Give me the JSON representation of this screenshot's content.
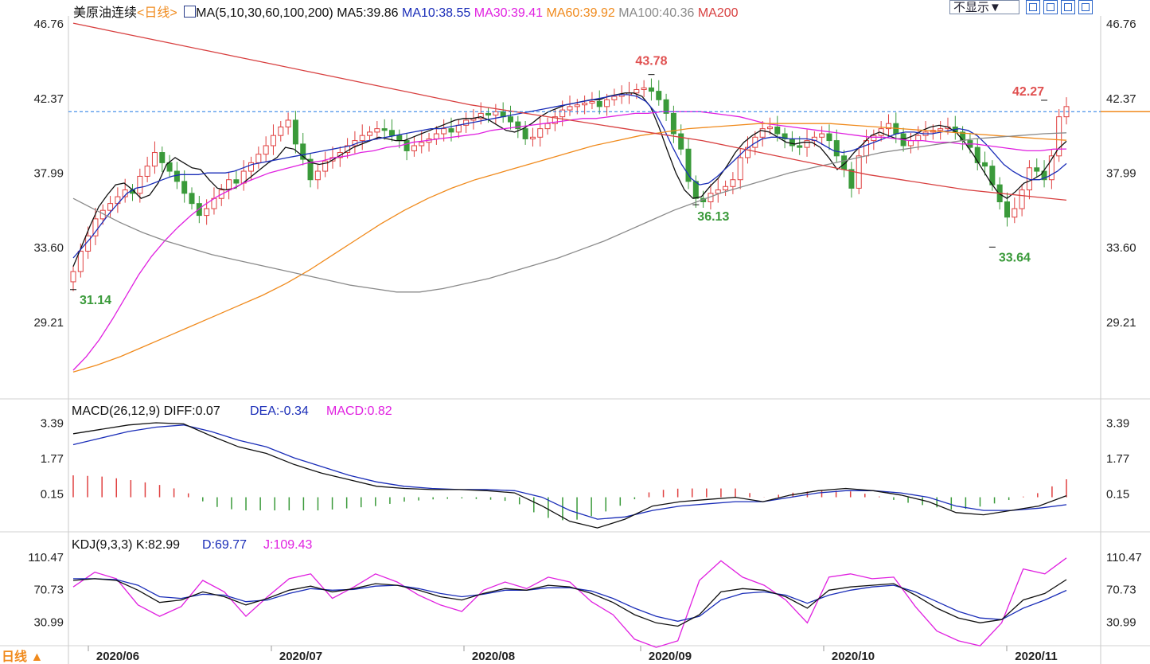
{
  "header": {
    "symbol": "美原油连续",
    "period": "<日线>",
    "ma_label": "MA(5,10,30,60,100,200)",
    "ma_values": [
      {
        "text": "MA5:39.86",
        "color": "#101010"
      },
      {
        "text": "MA10:38.55",
        "color": "#1a2db8"
      },
      {
        "text": "MA30:39.41",
        "color": "#e020e0"
      },
      {
        "text": "MA60:39.92",
        "color": "#f08a1c"
      },
      {
        "text": "MA100:40.36",
        "color": "#8a8a8a"
      },
      {
        "text": "MA200",
        "color": "#d84040"
      }
    ],
    "display_button": "不显示▼",
    "tool_icons": [
      "crosshair-icon",
      "layout-icon",
      "zoom-icon",
      "next-icon"
    ]
  },
  "price_panel": {
    "ticks": [
      "46.76",
      "42.37",
      "37.99",
      "33.60",
      "29.21"
    ],
    "annotations": [
      {
        "text": "43.78",
        "color": "#e05050"
      },
      {
        "text": "42.27",
        "color": "#e05050"
      },
      {
        "text": "36.13",
        "color": "#3a9a3a"
      },
      {
        "text": "33.64",
        "color": "#3a9a3a"
      },
      {
        "text": "31.14",
        "color": "#3a9a3a"
      }
    ]
  },
  "macd_panel": {
    "title": "MACD(26,12,9)",
    "diff": "DIFF:0.07",
    "dea": "DEA:-0.34",
    "macd": "MACD:0.82",
    "ticks": [
      "3.39",
      "1.77",
      "0.15"
    ]
  },
  "kdj_panel": {
    "title": "KDJ(9,3,3)",
    "k": "K:82.99",
    "d": "D:69.77",
    "j": "J:109.43",
    "ticks": [
      "110.47",
      "70.73",
      "30.99"
    ]
  },
  "x_axis": {
    "labels": [
      "2020/06",
      "2020/07",
      "2020/08",
      "2020/09",
      "2020/10",
      "2020/11"
    ]
  },
  "footer": {
    "period_button": "日线 ▲"
  },
  "colors": {
    "up": "#e04040",
    "down": "#3a9a3a",
    "ma5": "#101010",
    "ma10": "#1a2db8",
    "ma30": "#e020e0",
    "ma60": "#f08a1c",
    "ma100": "#8a8a8a",
    "ma200": "#d84040",
    "ref_line": "#1e78e6"
  },
  "chart_data": {
    "type": "candlestick",
    "reference_line": 41.6,
    "candles_close": [
      32.2,
      33.4,
      34.3,
      35.3,
      35.8,
      36.2,
      36.6,
      37.0,
      36.8,
      37.8,
      38.4,
      39.2,
      38.6,
      38.1,
      37.5,
      36.8,
      36.2,
      35.5,
      35.9,
      36.5,
      37.0,
      37.6,
      37.4,
      38.1,
      38.6,
      39.1,
      39.6,
      40.2,
      40.7,
      41.1,
      39.7,
      38.8,
      37.6,
      38.1,
      38.7,
      38.9,
      39.2,
      39.6,
      39.9,
      40.2,
      40.4,
      40.6,
      40.5,
      40.2,
      39.9,
      39.3,
      39.6,
      39.8,
      40.0,
      40.3,
      40.6,
      40.4,
      40.8,
      41.1,
      41.2,
      41.5,
      41.4,
      41.6,
      41.3,
      41.0,
      40.6,
      40.0,
      40.1,
      40.6,
      40.9,
      41.3,
      41.7,
      41.9,
      42.0,
      42.1,
      42.2,
      41.9,
      42.3,
      42.5,
      42.6,
      42.7,
      42.9,
      43.0,
      42.8,
      42.3,
      41.5,
      40.3,
      39.4,
      37.5,
      36.5,
      36.3,
      36.8,
      37.0,
      37.2,
      37.6,
      38.9,
      39.5,
      40.1,
      40.6,
      40.7,
      40.3,
      40.0,
      39.6,
      39.5,
      39.9,
      40.1,
      40.3,
      39.9,
      39.0,
      38.2,
      37.1,
      39.0,
      39.9,
      40.2,
      40.6,
      40.9,
      40.3,
      39.6,
      39.9,
      40.2,
      40.4,
      40.5,
      40.6,
      40.7,
      40.4,
      39.9,
      39.5,
      38.6,
      38.4,
      37.3,
      36.3,
      35.4,
      35.9,
      37.0,
      38.3,
      38.1,
      37.6,
      39.0,
      41.3,
      41.9
    ],
    "ma_series": [
      {
        "name": "MA5",
        "values": [
          32.5,
          33.7,
          34.9,
          36.0,
          36.7,
          37.3,
          37.4,
          37.0,
          36.5,
          36.7,
          37.4,
          38.5,
          38.9,
          38.6,
          38.3,
          38.2,
          37.6,
          37.1,
          37.0,
          37.1,
          37.4,
          37.8,
          38.2,
          38.6,
          38.9,
          39.5,
          39.4,
          39.0,
          38.6,
          38.5,
          38.6,
          38.9,
          39.2,
          39.5,
          39.7,
          39.9,
          40.1,
          40.0,
          39.9,
          39.9,
          40.1,
          40.3,
          40.5,
          40.7,
          40.9,
          41.1,
          41.2,
          41.2,
          41.3,
          41.1,
          40.8,
          40.5,
          40.4,
          40.6,
          40.9,
          41.3,
          41.6,
          41.8,
          42.0,
          42.1,
          42.2,
          42.3,
          42.3,
          42.5,
          42.6,
          42.7,
          42.7,
          42.5,
          41.9,
          40.7,
          39.3,
          38.0,
          37.0,
          36.5,
          36.6,
          37.2,
          37.7,
          38.4,
          39.2,
          39.8,
          40.2,
          40.5,
          40.4,
          40.1,
          39.8,
          39.7,
          39.8,
          39.8,
          39.5,
          38.9,
          38.2,
          38.6,
          39.2,
          39.7,
          40.2,
          40.4,
          40.2,
          40.0,
          40.0,
          40.2,
          40.5,
          40.7,
          40.8,
          40.7,
          40.4,
          39.8,
          39.1,
          38.3,
          37.5,
          36.8,
          36.5,
          36.9,
          37.4,
          37.6,
          37.9,
          38.6,
          39.4,
          39.86
        ]
      },
      {
        "name": "MA10",
        "values": [
          33.0,
          33.6,
          34.2,
          34.9,
          35.6,
          36.2,
          36.8,
          37.1,
          37.2,
          37.4,
          37.6,
          37.8,
          37.9,
          37.9,
          37.9,
          38.0,
          38.0,
          38.0,
          38.1,
          38.3,
          38.5,
          38.6,
          38.7,
          38.8,
          38.9,
          39.0,
          39.1,
          39.2,
          39.3,
          39.4,
          39.5,
          39.6,
          39.8,
          39.9,
          40.0,
          40.1,
          40.2,
          40.3,
          40.4,
          40.5,
          40.6,
          40.6,
          40.7,
          40.8,
          40.9,
          41.0,
          41.1,
          41.2,
          41.3,
          41.4,
          41.5,
          41.6,
          41.7,
          41.8,
          41.9,
          42.0,
          42.1,
          42.2,
          42.3,
          42.4,
          42.5,
          42.6,
          42.6,
          42.5,
          42.2,
          41.6,
          40.6,
          39.5,
          38.5,
          37.7,
          37.3,
          37.4,
          37.8,
          38.3,
          38.8,
          39.3,
          39.7,
          40.0,
          40.1,
          40.1,
          40.0,
          40.0,
          40.0,
          39.9,
          39.6,
          39.3,
          39.2,
          39.3,
          39.5,
          39.7,
          39.9,
          40.1,
          40.3,
          40.4,
          40.4,
          40.3,
          40.3,
          40.4,
          40.5,
          40.6,
          40.5,
          40.2,
          39.7,
          39.1,
          38.5,
          38.1,
          37.8,
          37.6,
          37.6,
          37.8,
          38.1,
          38.55
        ]
      },
      {
        "name": "MA30",
        "values": [
          26.4,
          27.2,
          28.2,
          29.4,
          30.7,
          32.0,
          33.1,
          34.0,
          34.8,
          35.5,
          36.1,
          36.6,
          37.0,
          37.4,
          37.7,
          38.0,
          38.2,
          38.4,
          38.6,
          38.7,
          38.9,
          39.0,
          39.2,
          39.3,
          39.5,
          39.6,
          39.8,
          39.9,
          40.0,
          40.1,
          40.2,
          40.3,
          40.5,
          40.6,
          40.7,
          40.8,
          40.9,
          41.0,
          41.1,
          41.2,
          41.2,
          41.3,
          41.4,
          41.5,
          41.5,
          41.6,
          41.6,
          41.6,
          41.6,
          41.5,
          41.4,
          41.3,
          41.1,
          40.9,
          40.8,
          40.7,
          40.6,
          40.5,
          40.4,
          40.3,
          40.2,
          40.1,
          40.1,
          40.0,
          39.9,
          39.9,
          39.8,
          39.8,
          39.7,
          39.7,
          39.6,
          39.5,
          39.4,
          39.3,
          39.3,
          39.4,
          39.41
        ]
      },
      {
        "name": "MA60",
        "values": [
          26.3,
          26.7,
          27.2,
          27.8,
          28.4,
          29.0,
          29.6,
          30.2,
          30.8,
          31.5,
          32.3,
          33.2,
          34.1,
          35.0,
          35.8,
          36.5,
          37.1,
          37.6,
          38.0,
          38.4,
          38.8,
          39.2,
          39.6,
          39.9,
          40.2,
          40.4,
          40.6,
          40.7,
          40.8,
          40.9,
          40.9,
          40.9,
          40.9,
          40.8,
          40.7,
          40.6,
          40.5,
          40.4,
          40.3,
          40.2,
          40.1,
          40.0,
          39.92
        ]
      },
      {
        "name": "MA100",
        "values": [
          36.5,
          35.8,
          35.1,
          34.5,
          34.0,
          33.6,
          33.2,
          32.9,
          32.6,
          32.3,
          32.0,
          31.7,
          31.4,
          31.2,
          31.0,
          31.0,
          31.2,
          31.5,
          31.8,
          32.2,
          32.6,
          33.0,
          33.5,
          34.0,
          34.6,
          35.2,
          35.8,
          36.3,
          36.8,
          37.2,
          37.6,
          38.0,
          38.3,
          38.6,
          38.9,
          39.2,
          39.4,
          39.6,
          39.8,
          40.0,
          40.1,
          40.2,
          40.3,
          40.36
        ]
      },
      {
        "name": "MA200",
        "values": [
          46.8,
          46.4,
          46.0,
          45.6,
          45.2,
          44.8,
          44.4,
          44.0,
          43.6,
          43.2,
          42.8,
          42.4,
          42.0,
          41.7,
          41.4,
          41.1,
          40.8,
          40.5,
          40.2,
          39.9,
          39.5,
          39.1,
          38.7,
          38.3,
          37.9,
          37.6,
          37.3,
          37.0,
          36.8,
          36.6,
          36.4
        ]
      }
    ],
    "macd": {
      "diff": [
        2.9,
        3.1,
        3.3,
        3.4,
        3.35,
        2.8,
        2.3,
        2.0,
        1.5,
        1.1,
        0.8,
        0.5,
        0.4,
        0.35,
        0.35,
        0.3,
        0.2,
        -0.4,
        -1.1,
        -1.4,
        -1.0,
        -0.4,
        -0.2,
        -0.1,
        0.0,
        -0.2,
        0.1,
        0.3,
        0.4,
        0.3,
        0.1,
        -0.2,
        -0.7,
        -0.8,
        -0.6,
        -0.4,
        0.07
      ],
      "dea": [
        2.4,
        2.7,
        3.0,
        3.2,
        3.3,
        3.0,
        2.6,
        2.3,
        1.8,
        1.4,
        1.0,
        0.7,
        0.5,
        0.4,
        0.35,
        0.35,
        0.3,
        0.0,
        -0.6,
        -1.0,
        -0.9,
        -0.6,
        -0.4,
        -0.3,
        -0.2,
        -0.2,
        0.0,
        0.2,
        0.3,
        0.3,
        0.2,
        0.0,
        -0.4,
        -0.6,
        -0.6,
        -0.5,
        -0.34
      ],
      "hist": [
        1.0,
        0.95,
        0.8,
        0.6,
        0.3,
        -0.4,
        -0.6,
        -0.6,
        -0.6,
        -0.6,
        -0.5,
        -0.4,
        -0.2,
        -0.1,
        -0.05,
        -0.1,
        -0.2,
        -0.9,
        -1.1,
        -0.8,
        -0.3,
        0.3,
        0.4,
        0.4,
        0.4,
        0.0,
        0.2,
        0.3,
        0.3,
        0.1,
        -0.2,
        -0.4,
        -0.6,
        -0.4,
        -0.1,
        0.2,
        0.82
      ],
      "ylim": [
        -1.47,
        3.8
      ]
    },
    "kdj": {
      "k": [
        82,
        84,
        82,
        70,
        55,
        58,
        68,
        62,
        52,
        60,
        70,
        75,
        68,
        72,
        78,
        76,
        70,
        62,
        58,
        66,
        72,
        70,
        76,
        74,
        66,
        55,
        40,
        30,
        26,
        40,
        68,
        72,
        70,
        62,
        48,
        70,
        74,
        76,
        78,
        64,
        48,
        36,
        30,
        34,
        58,
        66,
        82.99
      ],
      "d": [
        84,
        84,
        83,
        76,
        62,
        60,
        65,
        64,
        56,
        58,
        66,
        72,
        70,
        71,
        75,
        76,
        72,
        66,
        62,
        65,
        70,
        70,
        73,
        73,
        69,
        60,
        48,
        38,
        32,
        38,
        58,
        66,
        68,
        64,
        54,
        64,
        70,
        74,
        76,
        68,
        56,
        44,
        36,
        34,
        48,
        58,
        69.77
      ],
      "j": [
        74,
        92,
        84,
        52,
        38,
        50,
        82,
        68,
        38,
        62,
        84,
        90,
        60,
        74,
        90,
        80,
        64,
        52,
        44,
        70,
        80,
        72,
        86,
        80,
        56,
        40,
        10,
        0,
        8,
        82,
        106,
        86,
        76,
        58,
        30,
        86,
        90,
        84,
        86,
        50,
        20,
        8,
        2,
        30,
        96,
        90,
        109.43
      ],
      "ylim": [
        5,
        120
      ]
    }
  }
}
